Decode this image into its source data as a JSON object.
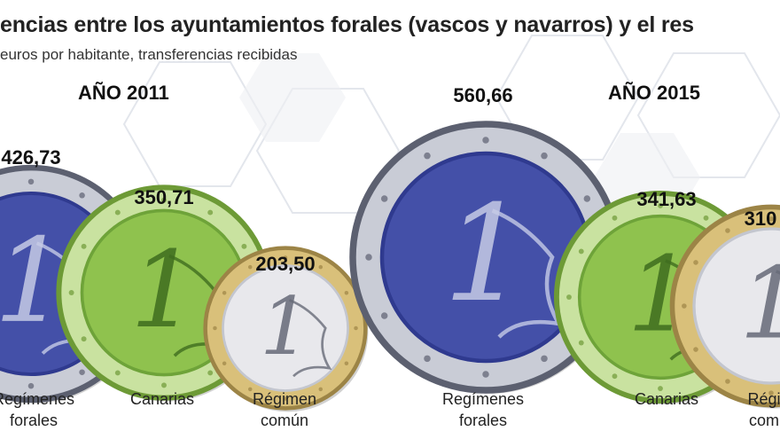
{
  "title": "encias entre los ayuntamientos forales (vascos y navarros) y el res",
  "subtitle": "euros por habitante, transferencias recibidas",
  "colors": {
    "background": "#ffffff",
    "coin_blue": "#4450a8",
    "coin_green": "#8fc24e",
    "coin_silver": "#e8e8ec",
    "coin_gold": "#d9c07a",
    "coin_ring": "#6e6e78"
  },
  "chart_data": [
    {
      "type": "bar",
      "title": "AÑO 2011",
      "categories": [
        "Regímenes\nforales",
        "Canarias",
        "Régimen\ncomún"
      ],
      "values": [
        426.73,
        350.71,
        203.5
      ],
      "value_labels": [
        "426,73",
        "350,71",
        "203,50"
      ],
      "coin_styles": [
        "blue",
        "green",
        "silver"
      ]
    },
    {
      "type": "bar",
      "title": "AÑO 2015",
      "categories": [
        "Regímenes\nforales",
        "Canarias",
        "Régi\ncom"
      ],
      "values": [
        560.66,
        341.63,
        310
      ],
      "value_labels": [
        "560,66",
        "341,63",
        "310"
      ],
      "coin_styles": [
        "blue",
        "green",
        "silver"
      ]
    }
  ]
}
